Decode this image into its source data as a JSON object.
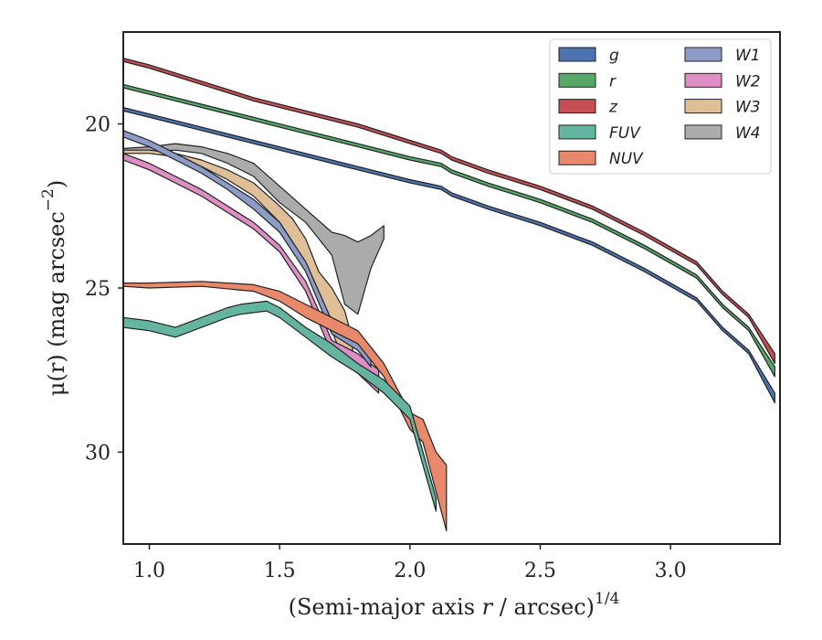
{
  "chart_data": {
    "type": "area",
    "xlabel": "(Semi-major axis r / arcsec)",
    "xlabel_italic_var": "r",
    "xlabel_exponent": "1/4",
    "ylabel": "μ(r) (mag arcsec",
    "ylabel_exponent": "−2",
    "xlim": [
      0.9,
      3.42
    ],
    "ylim": [
      32.8,
      17.2
    ],
    "y_inverted": true,
    "xticks": [
      1.0,
      1.5,
      2.0,
      2.5,
      3.0
    ],
    "xtick_labels": [
      "1.0",
      "1.5",
      "2.0",
      "2.5",
      "3.0"
    ],
    "yticks": [
      20,
      25,
      30
    ],
    "ytick_labels": [
      "20",
      "25",
      "30"
    ],
    "legend_position": "top-right",
    "legend_columns": 2,
    "series": [
      {
        "name": "g",
        "color": "#4c72b0",
        "x": [
          0.9,
          1.0,
          1.2,
          1.4,
          1.6,
          1.8,
          2.0,
          2.12,
          2.16,
          2.3,
          2.5,
          2.7,
          2.9,
          3.1,
          3.2,
          3.3,
          3.4
        ],
        "y_upper": [
          19.5,
          19.7,
          20.1,
          20.5,
          20.9,
          21.3,
          21.7,
          21.9,
          22.1,
          22.5,
          23.0,
          23.6,
          24.4,
          25.3,
          26.2,
          26.9,
          28.2
        ],
        "y_lower": [
          19.6,
          19.8,
          20.2,
          20.6,
          21.0,
          21.4,
          21.8,
          22.0,
          22.2,
          22.6,
          23.1,
          23.7,
          24.5,
          25.4,
          26.3,
          27.0,
          28.5
        ]
      },
      {
        "name": "r",
        "color": "#55a868",
        "x": [
          0.9,
          1.0,
          1.2,
          1.4,
          1.6,
          1.8,
          2.0,
          2.12,
          2.16,
          2.3,
          2.5,
          2.7,
          2.9,
          3.1,
          3.2,
          3.3,
          3.4
        ],
        "y_upper": [
          18.8,
          19.0,
          19.4,
          19.8,
          20.2,
          20.6,
          21.0,
          21.2,
          21.4,
          21.8,
          22.3,
          22.9,
          23.7,
          24.6,
          25.5,
          26.2,
          27.4
        ],
        "y_lower": [
          18.9,
          19.1,
          19.5,
          19.9,
          20.3,
          20.7,
          21.1,
          21.3,
          21.5,
          21.9,
          22.4,
          23.0,
          23.8,
          24.7,
          25.6,
          26.3,
          27.7
        ]
      },
      {
        "name": "z",
        "color": "#c44e52",
        "x": [
          0.9,
          1.0,
          1.2,
          1.4,
          1.6,
          1.8,
          2.0,
          2.12,
          2.16,
          2.3,
          2.5,
          2.7,
          2.9,
          3.1,
          3.2,
          3.3,
          3.4
        ],
        "y_upper": [
          18.0,
          18.2,
          18.7,
          19.2,
          19.6,
          20.0,
          20.5,
          20.8,
          21.0,
          21.4,
          21.9,
          22.5,
          23.3,
          24.2,
          25.1,
          25.8,
          27.0
        ],
        "y_lower": [
          18.1,
          18.3,
          18.8,
          19.3,
          19.7,
          20.1,
          20.6,
          20.9,
          21.1,
          21.5,
          22.0,
          22.6,
          23.4,
          24.3,
          25.2,
          25.9,
          27.3
        ]
      },
      {
        "name": "FUV",
        "color": "#64b5a0",
        "x": [
          0.9,
          1.0,
          1.1,
          1.2,
          1.3,
          1.35,
          1.45,
          1.5,
          1.6,
          1.7,
          1.8,
          1.9,
          2.0,
          2.1
        ],
        "y_upper": [
          25.9,
          26.0,
          26.2,
          25.9,
          25.6,
          25.5,
          25.4,
          25.6,
          26.2,
          26.7,
          27.3,
          27.8,
          28.6,
          31.4
        ],
        "y_lower": [
          26.2,
          26.3,
          26.5,
          26.2,
          25.9,
          25.8,
          25.7,
          25.9,
          26.5,
          27.1,
          27.6,
          28.2,
          29.0,
          31.8
        ]
      },
      {
        "name": "NUV",
        "color": "#e8896b",
        "x": [
          0.9,
          1.0,
          1.2,
          1.4,
          1.5,
          1.6,
          1.7,
          1.8,
          1.9,
          2.0,
          2.05,
          2.1,
          2.14
        ],
        "y_upper": [
          24.85,
          24.85,
          24.8,
          24.9,
          25.1,
          25.5,
          25.9,
          26.3,
          27.3,
          28.8,
          29.0,
          30.0,
          30.4
        ],
        "y_lower": [
          24.95,
          25.0,
          24.95,
          25.1,
          25.4,
          25.9,
          26.3,
          26.7,
          27.7,
          29.3,
          29.7,
          31.2,
          32.4
        ]
      },
      {
        "name": "W1",
        "color": "#8d9bc7",
        "x": [
          0.9,
          1.0,
          1.1,
          1.2,
          1.3,
          1.4,
          1.5,
          1.6,
          1.7,
          1.8,
          1.85
        ],
        "y_upper": [
          20.2,
          20.5,
          20.9,
          21.3,
          21.8,
          22.3,
          23.0,
          24.2,
          26.0,
          26.5,
          27.0
        ],
        "y_lower": [
          20.4,
          20.7,
          21.1,
          21.5,
          22.0,
          22.6,
          23.3,
          24.5,
          26.4,
          26.9,
          27.4
        ]
      },
      {
        "name": "W2",
        "color": "#dd8fc4",
        "x": [
          0.9,
          1.0,
          1.1,
          1.2,
          1.3,
          1.4,
          1.5,
          1.6,
          1.7,
          1.8,
          1.88
        ],
        "y_upper": [
          20.9,
          21.2,
          21.6,
          22.0,
          22.5,
          23.0,
          23.7,
          24.8,
          26.6,
          27.0,
          27.5
        ],
        "y_lower": [
          21.1,
          21.4,
          21.8,
          22.2,
          22.7,
          23.2,
          23.9,
          25.1,
          27.0,
          27.6,
          28.2
        ]
      },
      {
        "name": "W3",
        "color": "#dfbf97",
        "x": [
          0.9,
          1.0,
          1.1,
          1.2,
          1.3,
          1.4,
          1.5,
          1.55,
          1.6,
          1.65,
          1.7,
          1.75,
          1.78
        ],
        "y_upper": [
          20.8,
          20.8,
          20.9,
          21.1,
          21.4,
          21.8,
          22.5,
          22.9,
          23.5,
          24.5,
          25.0,
          25.7,
          26.6
        ],
        "y_lower": [
          20.9,
          20.9,
          21.0,
          21.3,
          21.7,
          22.2,
          23.0,
          23.6,
          24.5,
          25.3,
          26.3,
          27.3,
          27.0
        ]
      },
      {
        "name": "W4",
        "color": "#ababab",
        "x": [
          0.9,
          1.0,
          1.1,
          1.2,
          1.3,
          1.4,
          1.5,
          1.6,
          1.7,
          1.75,
          1.8,
          1.85,
          1.9
        ],
        "y_upper": [
          20.75,
          20.7,
          20.6,
          20.7,
          20.9,
          21.2,
          21.9,
          22.6,
          23.3,
          23.4,
          23.6,
          23.4,
          23.1
        ],
        "y_lower": [
          20.9,
          20.85,
          20.8,
          20.9,
          21.2,
          21.6,
          22.4,
          23.0,
          24.0,
          25.5,
          25.8,
          24.4,
          23.5
        ]
      }
    ]
  }
}
